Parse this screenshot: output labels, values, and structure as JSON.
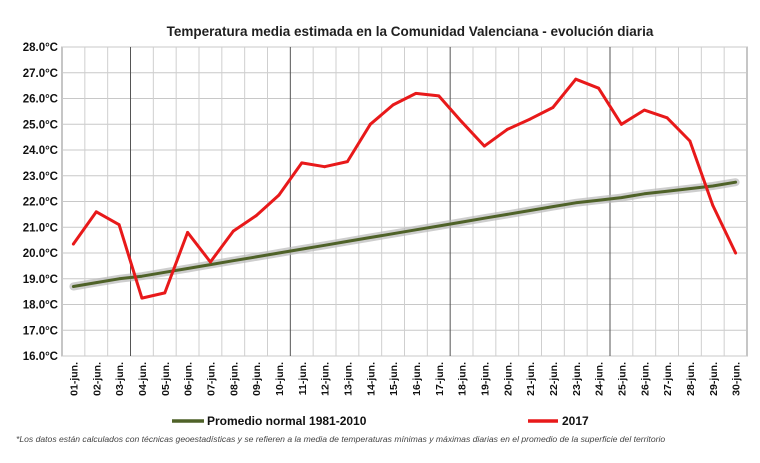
{
  "chart_data": {
    "type": "line",
    "title": "Temperatura media estimada en la Comunidad Valenciana - evolución diaria",
    "xlabel": "",
    "ylabel": "",
    "ylim": [
      16.0,
      28.0
    ],
    "yticks": [
      "16.0°C",
      "17.0°C",
      "18.0°C",
      "19.0°C",
      "20.0°C",
      "21.0°C",
      "22.0°C",
      "23.0°C",
      "24.0°C",
      "25.0°C",
      "26.0°C",
      "27.0°C",
      "28.0°C"
    ],
    "categories": [
      "01-jun.",
      "02-jun.",
      "03-jun.",
      "04-jun.",
      "05-jun.",
      "06-jun.",
      "07-jun.",
      "08-jun.",
      "09-jun.",
      "10-jun.",
      "11-jun.",
      "12-jun.",
      "13-jun.",
      "14-jun.",
      "15-jun.",
      "16-jun.",
      "17-jun.",
      "18-jun.",
      "19-jun.",
      "20-jun.",
      "21-jun.",
      "22-jun.",
      "23-jun.",
      "24-jun.",
      "25-jun.",
      "26-jun.",
      "27-jun.",
      "28-jun.",
      "29-jun.",
      "30-jun."
    ],
    "grid": true,
    "legend_position": "bottom",
    "series": [
      {
        "name": "Promedio normal 1981-2010",
        "color": "#4f6228",
        "values": [
          18.7,
          18.85,
          19.0,
          19.1,
          19.25,
          19.4,
          19.55,
          19.7,
          19.85,
          20.0,
          20.15,
          20.3,
          20.45,
          20.6,
          20.75,
          20.9,
          21.05,
          21.2,
          21.35,
          21.5,
          21.65,
          21.8,
          21.95,
          22.05,
          22.15,
          22.3,
          22.4,
          22.5,
          22.6,
          22.75
        ]
      },
      {
        "name": "2017",
        "color": "#e8191a",
        "values": [
          20.35,
          21.6,
          21.1,
          18.25,
          18.45,
          20.8,
          19.65,
          20.85,
          21.45,
          22.25,
          23.5,
          23.35,
          23.55,
          25.0,
          25.75,
          26.2,
          26.1,
          25.1,
          24.15,
          24.8,
          25.2,
          25.65,
          26.75,
          26.4,
          25.0,
          25.55,
          25.25,
          24.35,
          21.85,
          20.0
        ]
      }
    ]
  },
  "footnote": "*Los datos están calculados con técnicas geoestadísticas y se refieren a la media de temperaturas mínimas y máximas diarias en el promedio de la superficie del territorio"
}
